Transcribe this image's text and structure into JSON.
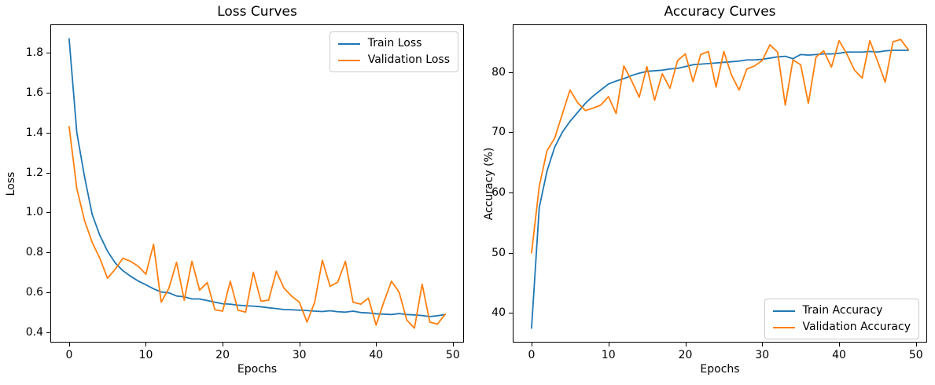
{
  "figure": {
    "background": "#ffffff",
    "text_color": "#000000",
    "axis_color": "#000000",
    "legend_border_color": "#cccccc"
  },
  "chart_data": [
    {
      "type": "line",
      "title": "Loss Curves",
      "xlabel": "Epochs",
      "ylabel": "Loss",
      "grid": false,
      "legend_position": "top-right",
      "xlim": [
        -2.45,
        51.45
      ],
      "ylim": [
        0.3475,
        1.9425
      ],
      "xticks": [
        0,
        10,
        20,
        30,
        40,
        50
      ],
      "xtick_labels": [
        "0",
        "10",
        "20",
        "30",
        "40",
        "50"
      ],
      "yticks": [
        0.4,
        0.6,
        0.8,
        1.0,
        1.2,
        1.4,
        1.6,
        1.8
      ],
      "ytick_labels": [
        "0.4",
        "0.6",
        "0.8",
        "1.0",
        "1.2",
        "1.4",
        "1.6",
        "1.8"
      ],
      "x": [
        0,
        1,
        2,
        3,
        4,
        5,
        6,
        7,
        8,
        9,
        10,
        11,
        12,
        13,
        14,
        15,
        16,
        17,
        18,
        19,
        20,
        21,
        22,
        23,
        24,
        25,
        26,
        27,
        28,
        29,
        30,
        31,
        32,
        33,
        34,
        35,
        36,
        37,
        38,
        39,
        40,
        41,
        42,
        43,
        44,
        45,
        46,
        47,
        48,
        49
      ],
      "series": [
        {
          "name": "Train Loss",
          "color": "#1f77b4",
          "values": [
            1.87,
            1.4,
            1.18,
            0.99,
            0.885,
            0.806,
            0.747,
            0.708,
            0.68,
            0.656,
            0.637,
            0.617,
            0.601,
            0.597,
            0.581,
            0.577,
            0.566,
            0.566,
            0.558,
            0.55,
            0.542,
            0.54,
            0.535,
            0.532,
            0.53,
            0.527,
            0.522,
            0.518,
            0.513,
            0.512,
            0.51,
            0.508,
            0.505,
            0.503,
            0.507,
            0.502,
            0.5,
            0.505,
            0.498,
            0.496,
            0.492,
            0.49,
            0.488,
            0.493,
            0.488,
            0.486,
            0.483,
            0.478,
            0.482,
            0.488
          ]
        },
        {
          "name": "Validation Loss",
          "color": "#ff7f0e",
          "values": [
            1.43,
            1.12,
            0.96,
            0.85,
            0.77,
            0.67,
            0.715,
            0.77,
            0.755,
            0.73,
            0.69,
            0.84,
            0.55,
            0.62,
            0.75,
            0.56,
            0.755,
            0.61,
            0.648,
            0.512,
            0.505,
            0.655,
            0.51,
            0.5,
            0.7,
            0.555,
            0.56,
            0.705,
            0.62,
            0.58,
            0.55,
            0.45,
            0.55,
            0.76,
            0.63,
            0.65,
            0.755,
            0.55,
            0.54,
            0.57,
            0.435,
            0.55,
            0.655,
            0.6,
            0.46,
            0.42,
            0.64,
            0.45,
            0.44,
            0.49
          ]
        }
      ]
    },
    {
      "type": "line",
      "title": "Accuracy Curves",
      "xlabel": "Epochs",
      "ylabel": "Accuracy (%)",
      "grid": false,
      "legend_position": "bottom-right",
      "xlim": [
        -2.45,
        51.45
      ],
      "ylim": [
        35.1,
        87.9
      ],
      "xticks": [
        0,
        10,
        20,
        30,
        40,
        50
      ],
      "xtick_labels": [
        "0",
        "10",
        "20",
        "30",
        "40",
        "50"
      ],
      "yticks": [
        40,
        50,
        60,
        70,
        80
      ],
      "ytick_labels": [
        "40",
        "50",
        "60",
        "70",
        "80"
      ],
      "x": [
        0,
        1,
        2,
        3,
        4,
        5,
        6,
        7,
        8,
        9,
        10,
        11,
        12,
        13,
        14,
        15,
        16,
        17,
        18,
        19,
        20,
        21,
        22,
        23,
        24,
        25,
        26,
        27,
        28,
        29,
        30,
        31,
        32,
        33,
        34,
        35,
        36,
        37,
        38,
        39,
        40,
        41,
        42,
        43,
        44,
        45,
        46,
        47,
        48,
        49
      ],
      "series": [
        {
          "name": "Train Accuracy",
          "color": "#1f77b4",
          "values": [
            37.5,
            57.5,
            63.5,
            67.5,
            70.0,
            71.8,
            73.3,
            74.8,
            76.0,
            77.0,
            78.0,
            78.5,
            78.9,
            79.4,
            79.8,
            80.1,
            80.2,
            80.3,
            80.5,
            80.6,
            80.9,
            81.2,
            81.3,
            81.4,
            81.5,
            81.6,
            81.7,
            81.8,
            82.0,
            82.0,
            82.1,
            82.3,
            82.5,
            82.6,
            82.2,
            82.9,
            82.8,
            82.9,
            83.0,
            83.0,
            83.1,
            83.3,
            83.3,
            83.3,
            83.4,
            83.3,
            83.5,
            83.6,
            83.6,
            83.6
          ]
        },
        {
          "name": "Validation Accuracy",
          "color": "#ff7f0e",
          "values": [
            50.0,
            61.0,
            66.9,
            69.0,
            73.0,
            77.0,
            74.9,
            73.6,
            74.0,
            74.5,
            75.9,
            73.1,
            81.0,
            78.6,
            75.8,
            80.9,
            75.3,
            79.7,
            77.3,
            81.9,
            83.0,
            78.4,
            82.9,
            83.4,
            77.5,
            83.4,
            79.5,
            77.0,
            80.5,
            81.0,
            81.9,
            84.5,
            83.3,
            74.5,
            82.0,
            81.2,
            74.8,
            82.5,
            83.5,
            80.8,
            85.2,
            83.0,
            80.3,
            79.0,
            85.2,
            81.8,
            78.3,
            85.0,
            85.4,
            83.7
          ]
        }
      ]
    }
  ]
}
